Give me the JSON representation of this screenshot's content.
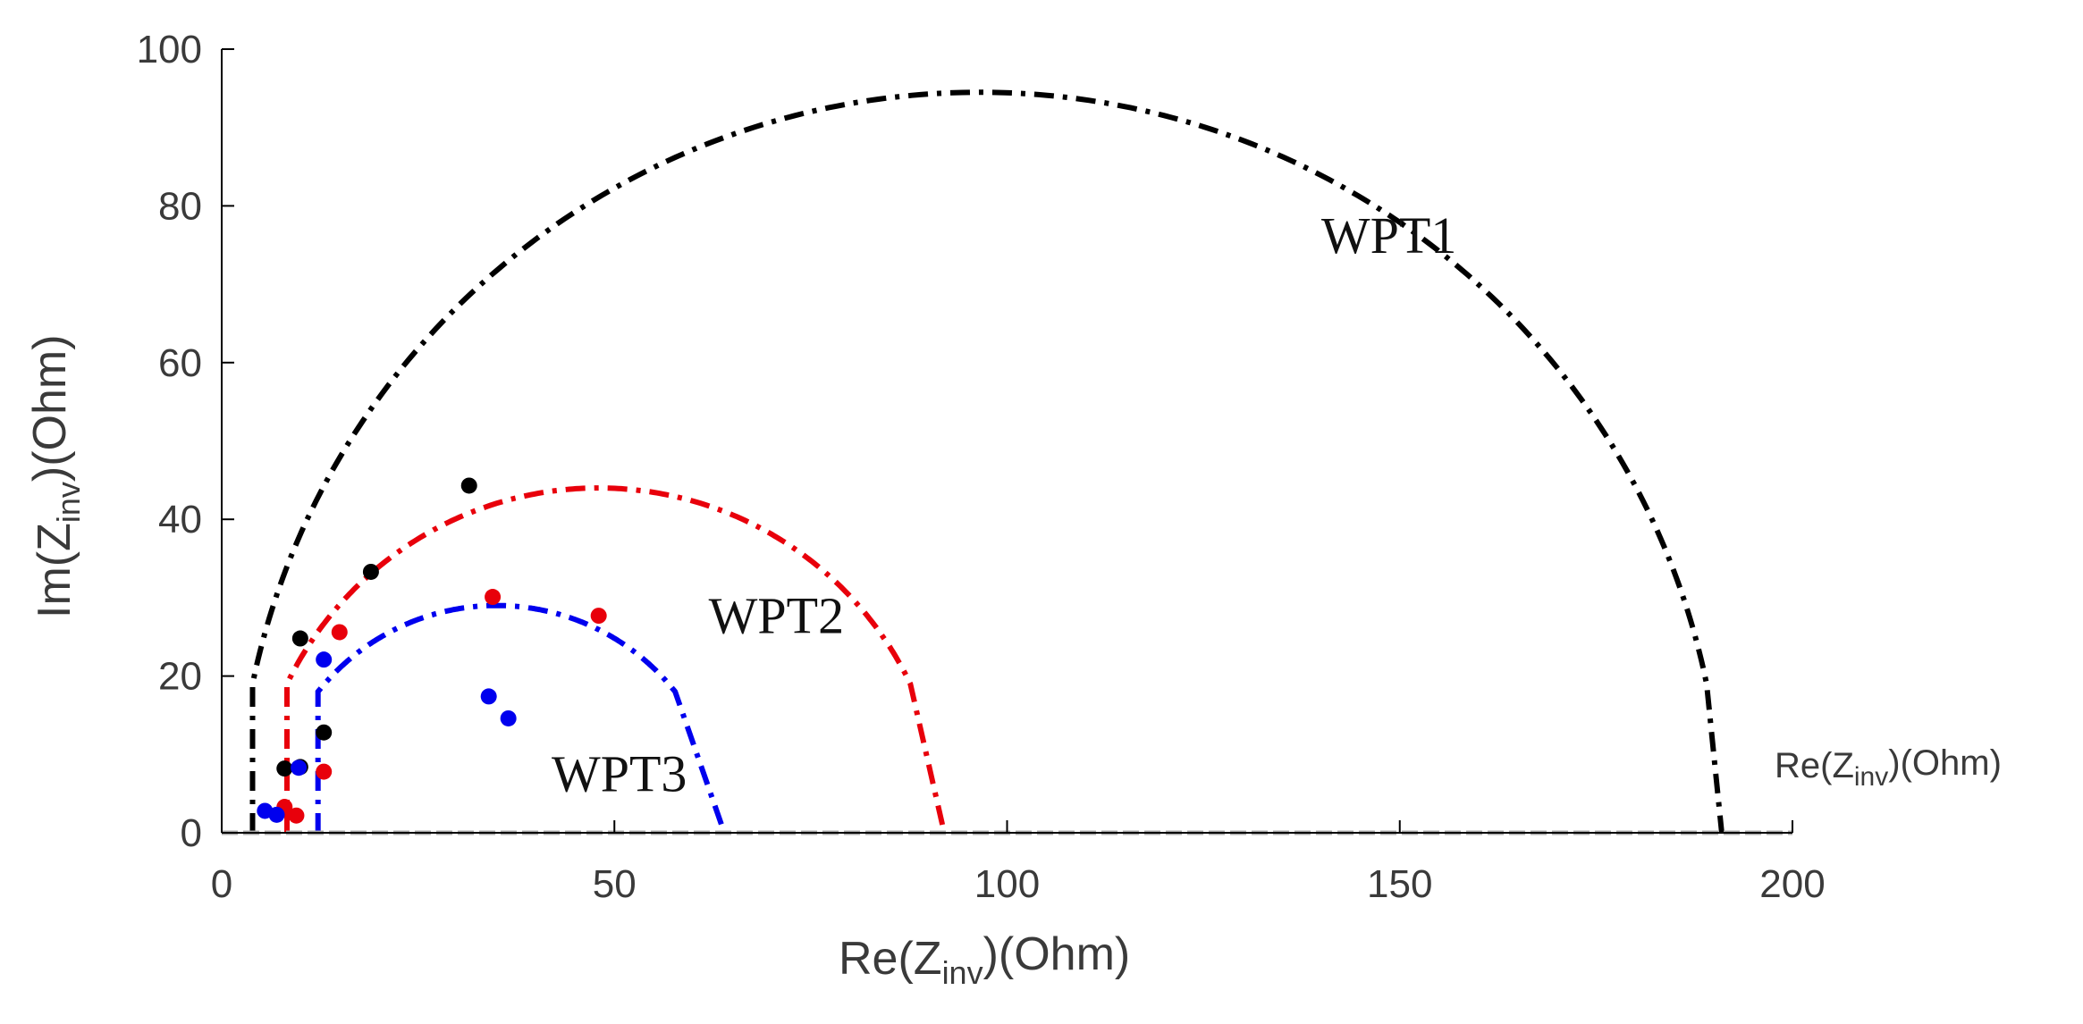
{
  "chart_data": {
    "type": "scatter",
    "title": "",
    "xlabel": {
      "main": "Re(Z",
      "sub": "inv",
      "tail": ")(Ohm)"
    },
    "ylabel": {
      "main": "Im(Z",
      "sub": "inv",
      "tail": ")(Ohm)"
    },
    "xaxis_end_label": {
      "main": "Re(Z",
      "sub": "inv",
      "tail": ")(Ohm)"
    },
    "xlim": [
      0,
      200
    ],
    "ylim": [
      0,
      100
    ],
    "xticks": [
      0,
      50,
      100,
      150,
      200
    ],
    "yticks": [
      0,
      20,
      40,
      60,
      80,
      100
    ],
    "xtick_labels": [
      "0",
      "50",
      "100",
      "150",
      "200"
    ],
    "ytick_labels": [
      "0",
      "20",
      "40",
      "60",
      "80",
      "100"
    ],
    "grid": false,
    "baseline_color": "#a8a8a8",
    "series": [
      {
        "name": "WPT1",
        "color": "#000000",
        "curve": {
          "r_min": 2,
          "r_max": 191,
          "y_cut": 19
        },
        "label_pos": [
          140,
          74
        ],
        "points": [
          {
            "x": 8,
            "y": 8.2
          },
          {
            "x": 10,
            "y": 8.4
          },
          {
            "x": 13,
            "y": 12.8
          },
          {
            "x": 10,
            "y": 24.8
          },
          {
            "x": 19,
            "y": 33.3
          },
          {
            "x": 31.5,
            "y": 44.3
          }
        ]
      },
      {
        "name": "WPT2",
        "color": "#e8000b",
        "curve": {
          "r_min": 4,
          "r_max": 92,
          "y_cut": 19
        },
        "label_pos": [
          62,
          25.5
        ],
        "points": [
          {
            "x": 9.5,
            "y": 2.2
          },
          {
            "x": 8,
            "y": 3.3
          },
          {
            "x": 13,
            "y": 7.8
          },
          {
            "x": 15,
            "y": 25.6
          },
          {
            "x": 34.5,
            "y": 30.1
          },
          {
            "x": 48,
            "y": 27.7
          }
        ]
      },
      {
        "name": "WPT3",
        "color": "#0000ee",
        "curve": {
          "r_min": 6,
          "r_max": 64,
          "y_cut": 18
        },
        "label_pos": [
          42,
          5.3
        ],
        "points": [
          {
            "x": 7,
            "y": 2.3
          },
          {
            "x": 5.5,
            "y": 2.8
          },
          {
            "x": 9.8,
            "y": 8.3
          },
          {
            "x": 13,
            "y": 22.1
          },
          {
            "x": 34,
            "y": 17.4
          },
          {
            "x": 36.5,
            "y": 14.6
          }
        ]
      }
    ]
  }
}
